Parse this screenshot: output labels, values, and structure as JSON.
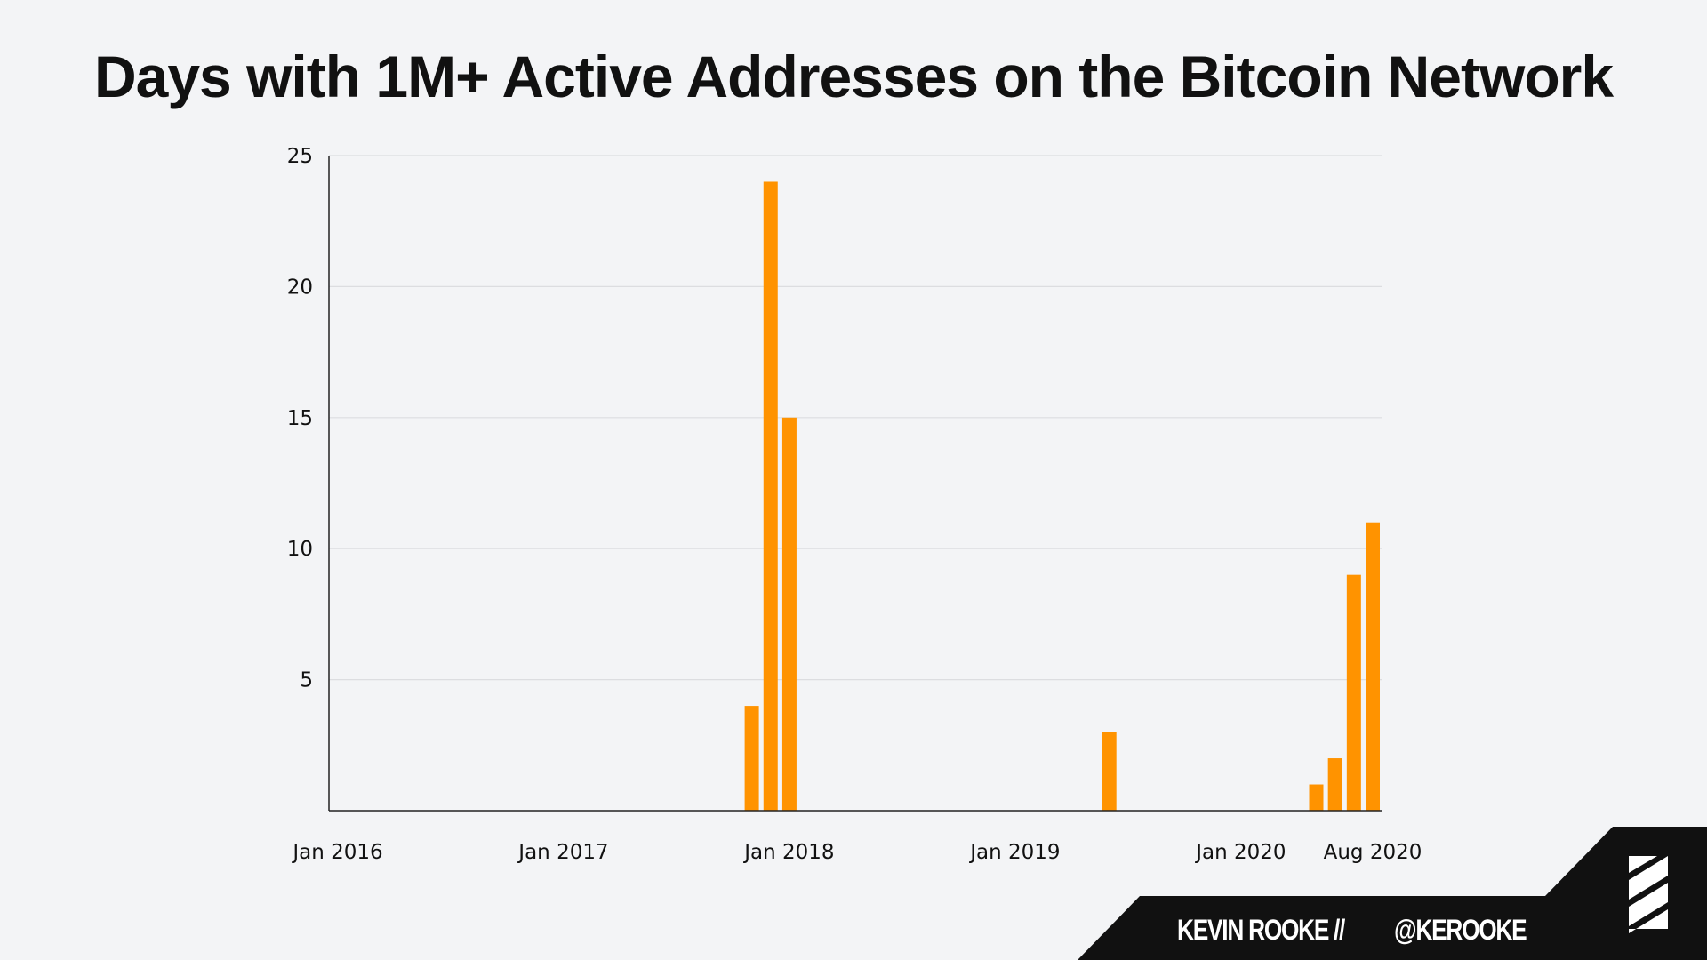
{
  "chart_data": {
    "type": "bar",
    "title": "Days with 1M+ Active Addresses on the Bitcoin Network",
    "xlabel": "",
    "ylabel": "",
    "x_range": [
      "2016-01",
      "2020-08"
    ],
    "ylim": [
      0,
      25
    ],
    "yticks": [
      5,
      10,
      15,
      20,
      25
    ],
    "xticks": [
      {
        "date": "2016-01",
        "label": "Jan 2016"
      },
      {
        "date": "2017-01",
        "label": "Jan 2017"
      },
      {
        "date": "2018-01",
        "label": "Jan 2018"
      },
      {
        "date": "2019-01",
        "label": "Jan 2019"
      },
      {
        "date": "2020-01",
        "label": "Jan 2020"
      },
      {
        "date": "2020-08",
        "label": "Aug 2020"
      }
    ],
    "bars": [
      {
        "date": "2017-11",
        "value": 4
      },
      {
        "date": "2017-12",
        "value": 24
      },
      {
        "date": "2018-01",
        "value": 15
      },
      {
        "date": "2019-06",
        "value": 3
      },
      {
        "date": "2020-05",
        "value": 1
      },
      {
        "date": "2020-06",
        "value": 2
      },
      {
        "date": "2020-07",
        "value": 9
      },
      {
        "date": "2020-08",
        "value": 11
      }
    ],
    "grid": true,
    "bar_color": "#ff9300"
  },
  "footer": {
    "author": "KEVIN ROOKE",
    "separator": "//",
    "handle": "@KEROOKE"
  }
}
